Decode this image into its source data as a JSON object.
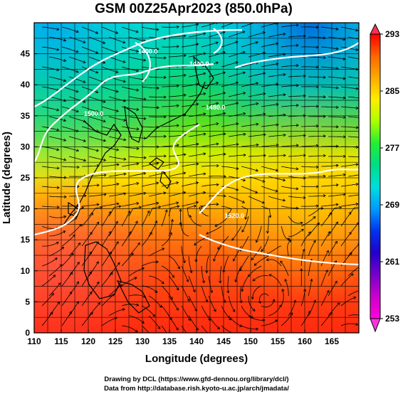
{
  "title": "GSM 00Z25Apr2023 (850.0hPa)",
  "credits": [
    "Drawing by DCL (https://www.gfd-dennou.org/library/dcl/)",
    "Data from http://database.rish.kyoto-u.ac.jp/arch/jmadata/"
  ],
  "map": {
    "xlabel": "Longitude (degrees)",
    "ylabel": "Latitude  (degrees)",
    "lon_range": [
      110,
      170
    ],
    "lat_range": [
      0,
      50
    ],
    "lon_ticks": [
      110,
      115,
      120,
      125,
      130,
      135,
      140,
      145,
      150,
      155,
      160,
      165
    ],
    "lat_ticks": [
      0,
      5,
      10,
      15,
      20,
      25,
      30,
      35,
      40,
      45
    ],
    "grid": true,
    "contour_labels": [
      {
        "text": "1520.0",
        "lon": 147,
        "lat": 18.5
      },
      {
        "text": "1480.0",
        "lon": 143.5,
        "lat": 36
      },
      {
        "text": "1440.0",
        "lon": 140.5,
        "lat": 43
      },
      {
        "text": "1400.0",
        "lon": 131,
        "lat": 45
      },
      {
        "text": "1500.0",
        "lon": 121,
        "lat": 35
      }
    ]
  },
  "colorbar": {
    "ticks": [
      "293",
      "285",
      "277",
      "269",
      "261",
      "253"
    ],
    "colors": [
      "#ff0000",
      "#ff6600",
      "#ffaa00",
      "#ffee00",
      "#aaff00",
      "#22ee33",
      "#00dd88",
      "#00dddd",
      "#0099ff",
      "#0033ee",
      "#2200cc",
      "#7700cc",
      "#cc00cc",
      "#ff00dd"
    ]
  }
}
